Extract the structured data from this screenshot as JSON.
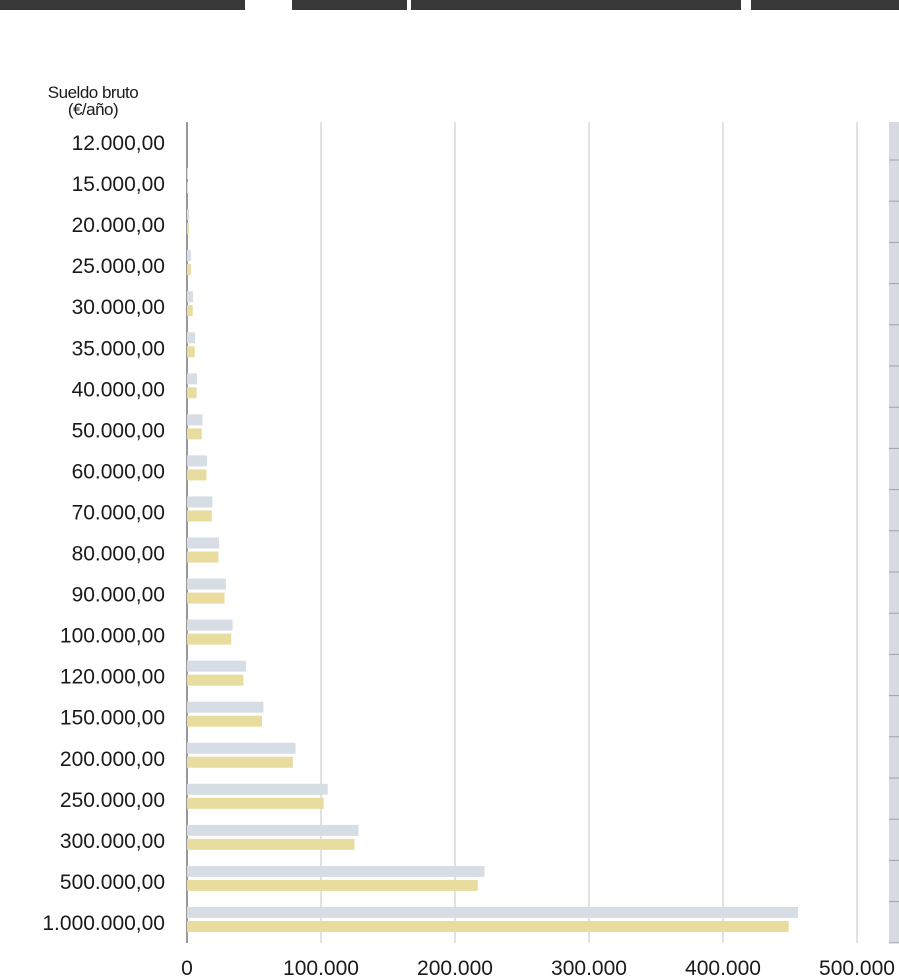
{
  "chart_data": {
    "type": "bar",
    "orientation": "horizontal",
    "y_axis_title_line1": "Sueldo bruto",
    "y_axis_title_line2": "(€/año)",
    "categories": [
      "12.000,00",
      "15.000,00",
      "20.000,00",
      "25.000,00",
      "30.000,00",
      "35.000,00",
      "40.000,00",
      "50.000,00",
      "60.000,00",
      "70.000,00",
      "80.000,00",
      "90.000,00",
      "100.000,00",
      "120.000,00",
      "150.000,00",
      "200.000,00",
      "250.000,00",
      "300.000,00",
      "500.000,00",
      "1.000.000,00"
    ],
    "series": [
      {
        "color": "#d6dde5",
        "values": [
          0,
          300,
          1500,
          3000,
          4500,
          6000,
          7500,
          11500,
          15000,
          19000,
          24000,
          29000,
          34000,
          44000,
          57000,
          81000,
          105000,
          128000,
          222000,
          456000
        ]
      },
      {
        "color": "#e8dc9f",
        "values": [
          0,
          300,
          1400,
          2900,
          4300,
          5800,
          7200,
          11000,
          14500,
          18500,
          23500,
          28000,
          33000,
          42000,
          56000,
          79000,
          102000,
          125000,
          217000,
          449000
        ]
      }
    ],
    "x_ticks": [
      "0",
      "100.000",
      "200.000",
      "300.000",
      "400.000",
      "500.000"
    ],
    "xlim": [
      0,
      500000
    ],
    "grid": true,
    "colors": {
      "gridline": "#c6c6c6",
      "text": "#1a1a1a",
      "axis": "#333333",
      "right_panel": "#d5dbe1"
    }
  }
}
